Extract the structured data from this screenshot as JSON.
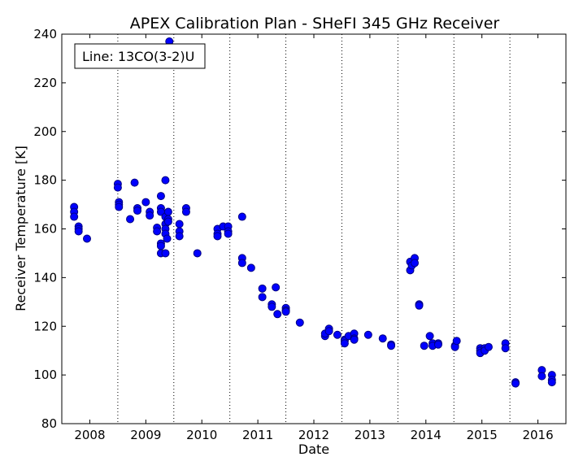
{
  "chart_data": {
    "type": "scatter",
    "title": "APEX Calibration Plan - SHeFI 345 GHz Receiver",
    "xlabel": "Date",
    "ylabel": "Receiver Temperature [K]",
    "legend_text": "Line: 13CO(3-2)U",
    "legend_position": "top-left",
    "xlim": [
      2007.5,
      2016.5
    ],
    "ylim": [
      80,
      240
    ],
    "x_ticks": [
      2008,
      2009,
      2010,
      2011,
      2012,
      2013,
      2014,
      2015,
      2016
    ],
    "y_ticks": [
      80,
      100,
      120,
      140,
      160,
      180,
      200,
      220,
      240
    ],
    "vertical_gridlines_at": [
      2008.5,
      2009.5,
      2010.5,
      2011.5,
      2012.5,
      2013.5,
      2014.5,
      2015.5
    ],
    "marker_color": "#0000ff",
    "marker_edge_color": "#000080",
    "points": [
      [
        2007.72,
        169
      ],
      [
        2007.72,
        167
      ],
      [
        2007.72,
        165
      ],
      [
        2007.8,
        161
      ],
      [
        2007.8,
        160
      ],
      [
        2007.8,
        159
      ],
      [
        2007.95,
        156
      ],
      [
        2008.5,
        178.5
      ],
      [
        2008.5,
        177
      ],
      [
        2008.52,
        171
      ],
      [
        2008.52,
        170
      ],
      [
        2008.52,
        169
      ],
      [
        2008.72,
        164
      ],
      [
        2008.8,
        179
      ],
      [
        2008.85,
        168.5
      ],
      [
        2008.85,
        167.5
      ],
      [
        2009.0,
        171
      ],
      [
        2009.07,
        167
      ],
      [
        2009.07,
        165.5
      ],
      [
        2009.2,
        160.5
      ],
      [
        2009.2,
        159
      ],
      [
        2009.27,
        173.5
      ],
      [
        2009.27,
        168.5
      ],
      [
        2009.27,
        167
      ],
      [
        2009.27,
        154
      ],
      [
        2009.27,
        153
      ],
      [
        2009.27,
        150
      ],
      [
        2009.35,
        180
      ],
      [
        2009.35,
        165
      ],
      [
        2009.35,
        162
      ],
      [
        2009.35,
        160
      ],
      [
        2009.35,
        158
      ],
      [
        2009.35,
        150
      ],
      [
        2009.4,
        167
      ],
      [
        2009.4,
        164
      ],
      [
        2009.4,
        163
      ],
      [
        2009.38,
        156
      ],
      [
        2009.42,
        237
      ],
      [
        2009.6,
        162
      ],
      [
        2009.6,
        159
      ],
      [
        2009.6,
        157
      ],
      [
        2009.72,
        168.5
      ],
      [
        2009.72,
        167
      ],
      [
        2009.92,
        150
      ],
      [
        2010.28,
        160
      ],
      [
        2010.28,
        158
      ],
      [
        2010.28,
        157
      ],
      [
        2010.38,
        161
      ],
      [
        2010.47,
        161
      ],
      [
        2010.47,
        159
      ],
      [
        2010.47,
        158
      ],
      [
        2010.72,
        165
      ],
      [
        2010.72,
        148
      ],
      [
        2010.72,
        146
      ],
      [
        2010.88,
        144
      ],
      [
        2011.08,
        135.5
      ],
      [
        2011.08,
        132
      ],
      [
        2011.25,
        129
      ],
      [
        2011.25,
        128
      ],
      [
        2011.32,
        136
      ],
      [
        2011.35,
        125
      ],
      [
        2011.5,
        127.5
      ],
      [
        2011.5,
        126.5
      ],
      [
        2011.5,
        126
      ],
      [
        2011.75,
        121.5
      ],
      [
        2012.2,
        116
      ],
      [
        2012.2,
        117
      ],
      [
        2012.27,
        119
      ],
      [
        2012.27,
        118
      ],
      [
        2012.42,
        116.5
      ],
      [
        2012.55,
        114.5
      ],
      [
        2012.55,
        114
      ],
      [
        2012.55,
        113
      ],
      [
        2012.62,
        116
      ],
      [
        2012.72,
        117
      ],
      [
        2012.72,
        115
      ],
      [
        2012.72,
        114.5
      ],
      [
        2012.97,
        116.5
      ],
      [
        2013.23,
        115
      ],
      [
        2013.38,
        112.5
      ],
      [
        2013.38,
        112
      ],
      [
        2013.72,
        146.5
      ],
      [
        2013.72,
        143
      ],
      [
        2013.75,
        145
      ],
      [
        2013.8,
        148
      ],
      [
        2013.8,
        146
      ],
      [
        2013.88,
        129
      ],
      [
        2013.88,
        128.5
      ],
      [
        2013.97,
        112
      ],
      [
        2014.07,
        116
      ],
      [
        2014.12,
        113
      ],
      [
        2014.12,
        112
      ],
      [
        2014.22,
        113
      ],
      [
        2014.22,
        112.5
      ],
      [
        2014.52,
        112
      ],
      [
        2014.52,
        111.5
      ],
      [
        2014.55,
        114
      ],
      [
        2014.97,
        111
      ],
      [
        2014.97,
        110
      ],
      [
        2014.97,
        109
      ],
      [
        2015.05,
        111
      ],
      [
        2015.05,
        110
      ],
      [
        2015.12,
        111.5
      ],
      [
        2015.42,
        113
      ],
      [
        2015.42,
        111
      ],
      [
        2015.6,
        97
      ],
      [
        2015.6,
        96.5
      ],
      [
        2016.07,
        102
      ],
      [
        2016.07,
        99.5
      ],
      [
        2016.25,
        100
      ],
      [
        2016.25,
        98
      ],
      [
        2016.25,
        97
      ]
    ]
  }
}
